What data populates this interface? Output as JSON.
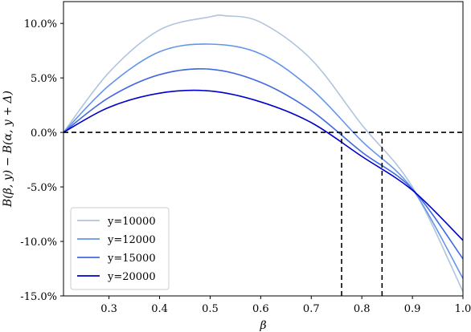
{
  "chart_data": {
    "type": "line",
    "xlabel": "β",
    "ylabel": "B(β, y) − B(α, y + Δ)",
    "xlim": [
      0.21,
      1.0
    ],
    "ylim": [
      -15.0,
      12.0
    ],
    "x_ticks": [
      "0.3",
      "0.4",
      "0.5",
      "0.6",
      "0.7",
      "0.8",
      "0.9",
      "1.0"
    ],
    "y_ticks": [
      "-15.0%",
      "-10.0%",
      "-5.0%",
      "0.0%",
      "5.0%",
      "10.0%"
    ],
    "legend_position": "lower-left",
    "grid": false,
    "series": [
      {
        "name": "y=10000",
        "color": "#b0c4de",
        "x": [
          0.21,
          0.3,
          0.4,
          0.5,
          0.53,
          0.6,
          0.7,
          0.8,
          0.9,
          1.0
        ],
        "y": [
          0.0,
          5.5,
          9.4,
          10.6,
          10.7,
          10.1,
          6.7,
          0.7,
          -5.0,
          -14.6
        ]
      },
      {
        "name": "y=12000",
        "color": "#6495ed",
        "x": [
          0.21,
          0.3,
          0.4,
          0.5,
          0.6,
          0.7,
          0.8,
          0.9,
          1.0
        ],
        "y": [
          0.0,
          4.3,
          7.4,
          8.1,
          7.2,
          4.0,
          -0.8,
          -5.2,
          -13.4
        ]
      },
      {
        "name": "y=15000",
        "color": "#4169e1",
        "x": [
          0.21,
          0.3,
          0.4,
          0.5,
          0.6,
          0.7,
          0.8,
          0.9,
          1.0
        ],
        "y": [
          0.0,
          3.2,
          5.3,
          5.8,
          4.6,
          2.0,
          -1.8,
          -5.2,
          -11.6
        ]
      },
      {
        "name": "y=20000",
        "color": "#0000cd",
        "x": [
          0.21,
          0.3,
          0.4,
          0.5,
          0.6,
          0.7,
          0.8,
          0.9,
          1.0
        ],
        "y": [
          0.0,
          2.3,
          3.6,
          3.8,
          2.8,
          0.9,
          -2.2,
          -5.3,
          -9.9
        ]
      }
    ],
    "reference_lines": [
      {
        "orientation": "horizontal",
        "y": 0.0,
        "style": "dashed",
        "color": "#000000"
      },
      {
        "orientation": "vertical",
        "x": 0.76,
        "y_from": -15.0,
        "y_to": 0.0,
        "style": "dashed",
        "color": "#000000"
      },
      {
        "orientation": "vertical",
        "x": 0.84,
        "y_from": -15.0,
        "y_to": 0.0,
        "style": "dashed",
        "color": "#000000"
      }
    ]
  }
}
